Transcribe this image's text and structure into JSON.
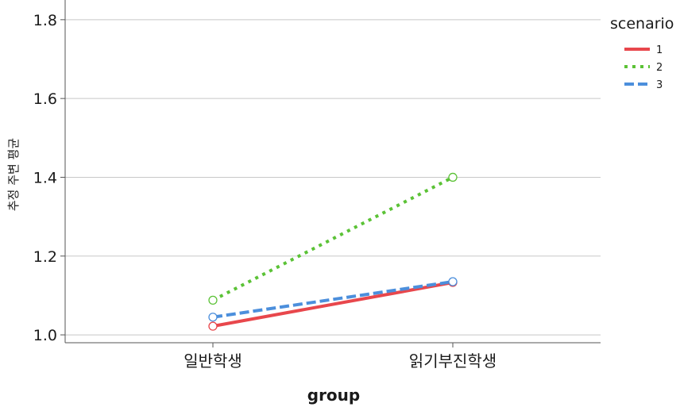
{
  "chart_data": {
    "type": "line",
    "title": "",
    "xlabel": "group",
    "ylabel": "추정 주변 평균",
    "categories": [
      "일반학생",
      "읽기부진학생"
    ],
    "ylim": [
      0.98,
      1.85
    ],
    "yticks": [
      "1.0",
      "1.2",
      "1.4",
      "1.6",
      "1.8"
    ],
    "ytick_values": [
      1.0,
      1.2,
      1.4,
      1.6,
      1.8
    ],
    "grid": true,
    "legend": {
      "title": "scenario",
      "placement": "top-right"
    },
    "series": [
      {
        "name": "1",
        "values": [
          1.022,
          1.133
        ],
        "color": "#e8474c",
        "dash": "solid"
      },
      {
        "name": "2",
        "values": [
          1.088,
          1.4
        ],
        "color": "#5bc236",
        "dash": "dotted"
      },
      {
        "name": "3",
        "values": [
          1.045,
          1.135
        ],
        "color": "#4c8fdc",
        "dash": "dashed"
      }
    ]
  }
}
